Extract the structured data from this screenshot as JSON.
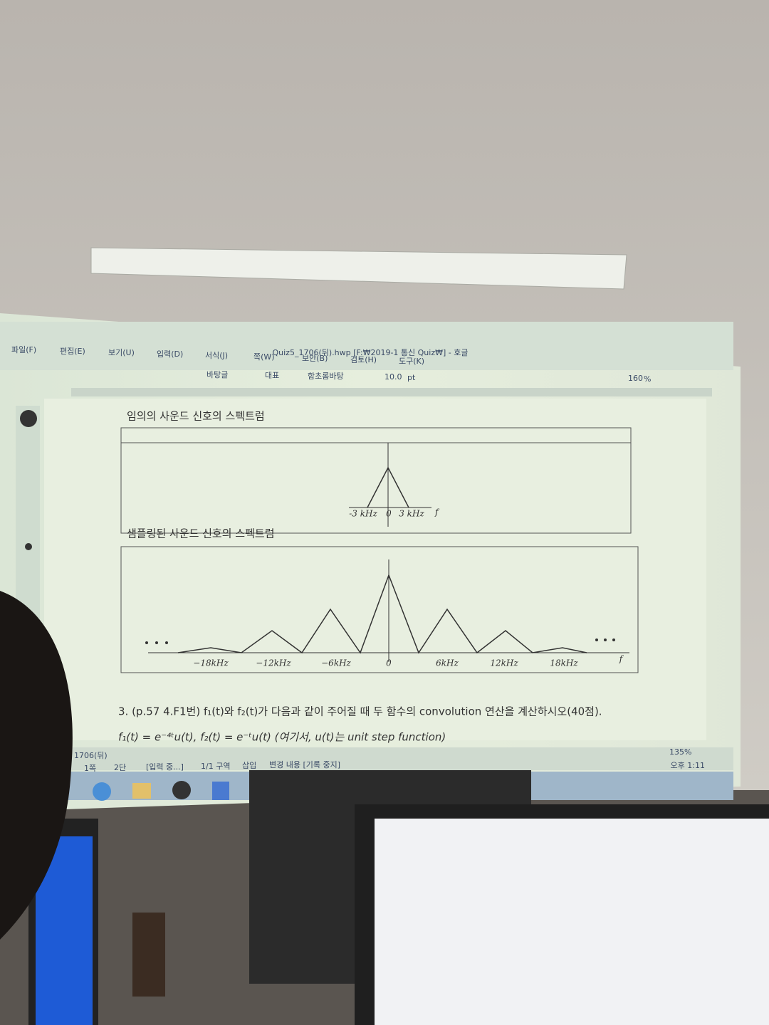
{
  "window": {
    "title": "Quiz5_1706(뒤).hwp [F:₩2019-1 통신 Quiz₩] - 호글",
    "menu": [
      "파일(F)",
      "편집(E)",
      "보기(U)",
      "입력(D)",
      "서식(J)",
      "쪽(W)",
      "보안(B)",
      "검토(H)",
      "도구(K)"
    ],
    "toolbar": [
      "바탕글",
      "대표",
      "함초롬바탕",
      "10.0",
      "pt",
      "160",
      "%"
    ]
  },
  "document": {
    "sections": [
      {
        "title": "임의의 사운드 신호의 스펙트럼",
        "axis_labels": [
          "-3 kHz",
          "0",
          "3 kHz",
          "f"
        ]
      },
      {
        "title": "샘플링된 사운드 신호의 스펙트럼",
        "axis_labels": [
          "−18kHz",
          "−12kHz",
          "−6kHz",
          "0",
          "6kHz",
          "12kHz",
          "18kHz",
          "f"
        ]
      }
    ],
    "question": "3. (p.57 4.F1번) f₁(t)와 f₂(t)가 다음과 같이 주어질 때 두 함수의 convolution 연산을 계산하시오(40점).",
    "formula": "f₁(t) = e⁻⁴ᵗu(t), f₂(t) = e⁻ᵗu(t) (여기서, u(t)는 unit step function)"
  },
  "status_bar": {
    "tab": "1706(뒤)",
    "items": [
      "1쪽",
      "2단",
      "[입력 중...]",
      "1/1 구역",
      "삽입",
      "변경 내용 [기록 중지]"
    ],
    "zoom": "135%"
  },
  "taskbar": {
    "time": "오후 1:11"
  }
}
